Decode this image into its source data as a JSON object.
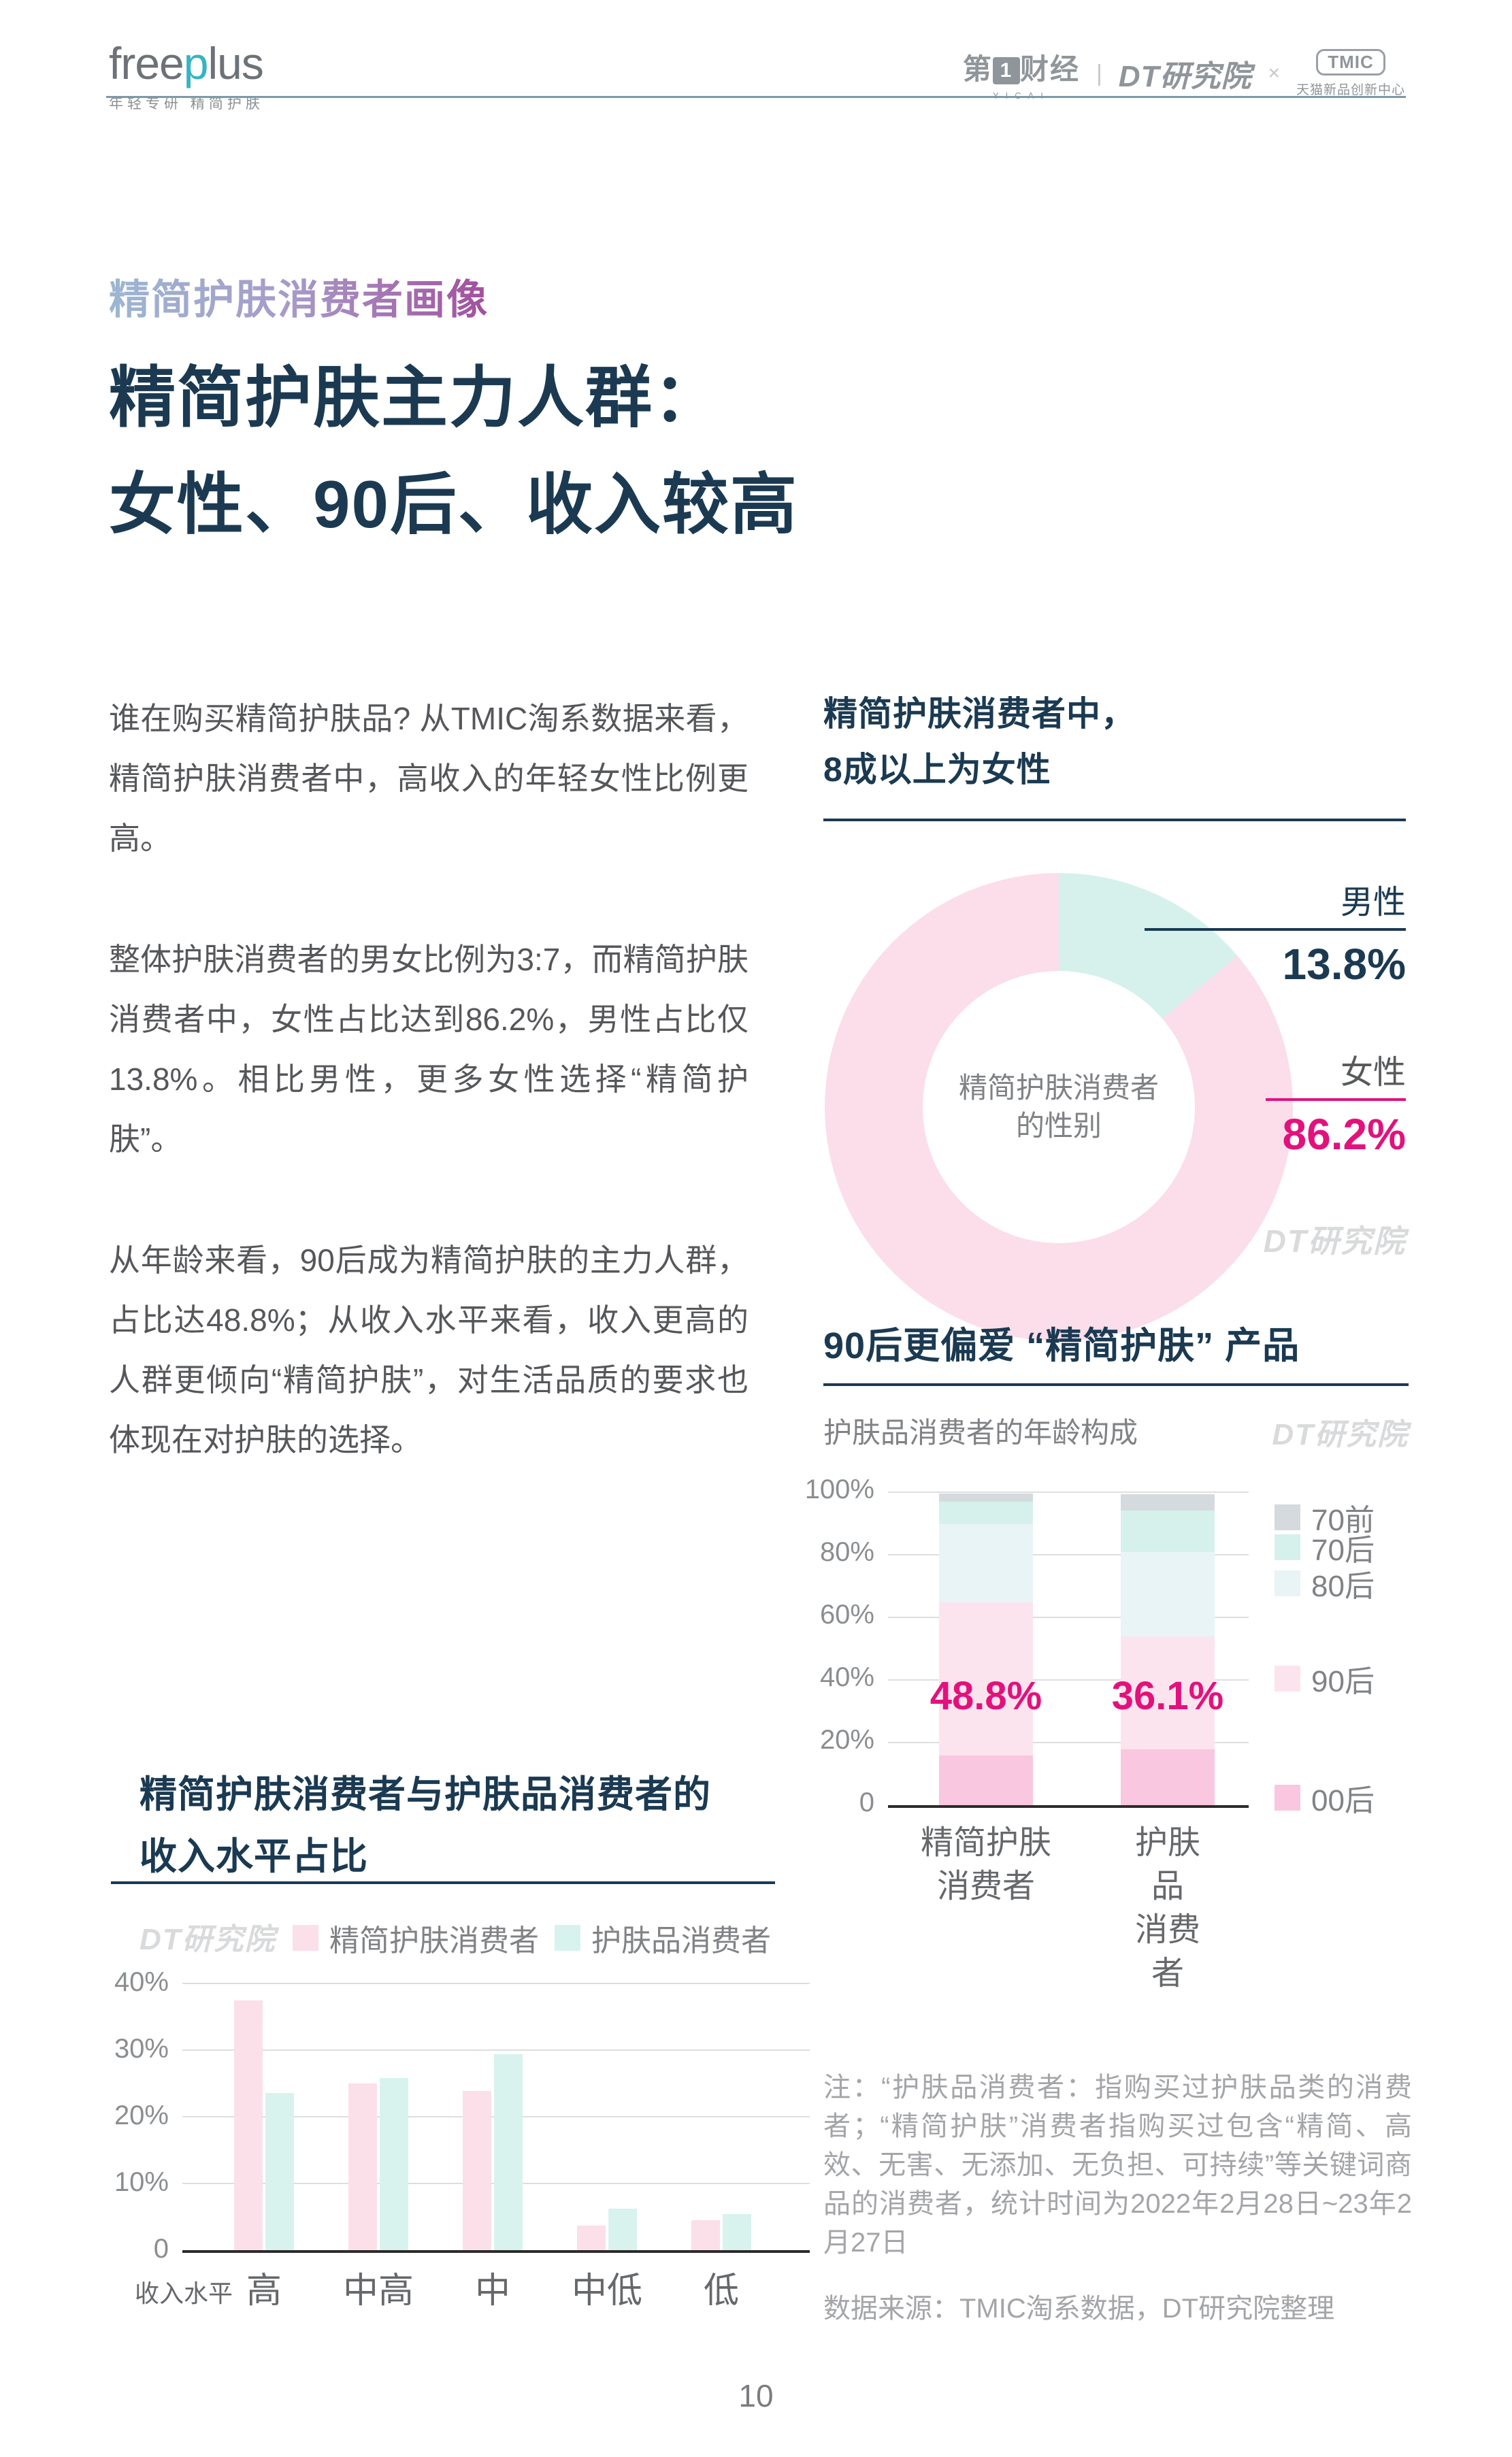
{
  "page": {
    "number": "10"
  },
  "header": {
    "brand": {
      "wordmark_a": "free",
      "wordmark_b": "p",
      "wordmark_c": "lus",
      "tagline": "年轻专研 精简护肤"
    },
    "partners": {
      "yicai_pre": "第",
      "yicai_one": "1",
      "yicai_post": "财经",
      "yicai_en": "YICAI",
      "separator": "|",
      "dt": "DT研究院",
      "times": "×",
      "tmic": "TMIC",
      "tmic_sub": "天猫新品创新中心"
    }
  },
  "title": {
    "eyebrow": "精简护肤消费者画像",
    "line1": "精简护肤主力人群：",
    "line2": "女性、90后、收入较高"
  },
  "paragraphs": [
    "谁在购买精简护肤品? 从TMIC淘系数据来看，精简护肤消费者中，高收入的年轻女性比例更高。",
    "整体护肤消费者的男女比例为3:7，而精简护肤消费者中，女性占比达到86.2%，男性占比仅13.8%。相比男性，更多女性选择“精简护肤”。",
    "从年龄来看，90后成为精简护肤的主力人群，占比达48.8%；从收入水平来看，收入更高的人群更倾向“精简护肤”，对生活品质的要求也体现在对护肤的选择。"
  ],
  "gender_section": {
    "heading_line1": "精简护肤消费者中，",
    "heading_line2": "8成以上为女性",
    "male_label": "男性",
    "male_value": "13.8%",
    "female_label": "女性",
    "female_value": "86.2%",
    "watermark": "DT研究院",
    "accent_navy": "#1b3a52",
    "accent_magenta": "#e3117c"
  },
  "age_section": {
    "heading": "90后更偏爱 “精简护肤” 产品",
    "subtitle": "护肤品消费者的年龄构成",
    "watermark": "DT研究院",
    "cat_labels": [
      "精简护肤\n消费者",
      "护肤品\n消费者"
    ]
  },
  "income_section": {
    "heading_line1": "精简护肤消费者与护肤品消费者的",
    "heading_line2": "收入水平占比",
    "watermark": "DT研究院",
    "axis_caption": "收入水平"
  },
  "notes": {
    "line1": "注：“护肤品消费者：指购买过护肤品类的消费者；“精简护肤”消费者指购买过包含“精简、高效、无害、无添加、无负担、可持续”等关键词商品的消费者，统计时间为2022年2月28日~23年2月27日",
    "line2": "数据来源：TMIC淘系数据，DT研究院整理"
  },
  "chart_data": [
    {
      "type": "pie",
      "donut": true,
      "title": "精简护肤消费者中，8成以上为女性",
      "labels": [
        "女性",
        "男性"
      ],
      "values": [
        86.2,
        13.8
      ],
      "colors": [
        "#fbdeea",
        "#d6f1ec"
      ],
      "center_label_line1": "精简护肤消费者",
      "center_label_line2": "的性别",
      "legend_position": "right"
    },
    {
      "type": "bar",
      "stacked": true,
      "title": "90后更偏爱 “精简护肤” 产品",
      "subtitle": "护肤品消费者的年龄构成",
      "categories": [
        "精简护肤消费者",
        "护肤品消费者"
      ],
      "series": [
        {
          "name": "00后",
          "values": [
            15.9,
            17.9
          ],
          "color": "#f9c7df"
        },
        {
          "name": "90后",
          "values": [
            48.8,
            36.1
          ],
          "color": "#fce4ee"
        },
        {
          "name": "80后",
          "values": [
            25.0,
            26.9
          ],
          "color": "#e9f4f7"
        },
        {
          "name": "70后",
          "values": [
            7.3,
            13.2
          ],
          "color": "#d6f1ec"
        },
        {
          "name": "70前",
          "values": [
            2.5,
            5.2
          ],
          "color": "#d4dadd"
        }
      ],
      "highlight_labels": [
        "48.8%",
        "36.1%"
      ],
      "ylim": [
        0,
        100
      ],
      "yticks": [
        "0",
        "20%",
        "40%",
        "60%",
        "80%",
        "100%"
      ],
      "grid": true,
      "legend_position": "right"
    },
    {
      "type": "bar",
      "stacked": false,
      "title": "精简护肤消费者与护肤品消费者的收入水平占比",
      "categories": [
        "高",
        "中高",
        "中",
        "中低",
        "低"
      ],
      "series": [
        {
          "name": "精简护肤消费者",
          "values": [
            37.4,
            25.0,
            23.9,
            3.7,
            4.5
          ],
          "color": "#fbdfe9"
        },
        {
          "name": "护肤品消费者",
          "values": [
            23.6,
            25.8,
            29.4,
            6.2,
            5.4
          ],
          "color": "#d8f3ee"
        }
      ],
      "xlabel": "收入水平",
      "ylim": [
        0,
        40
      ],
      "yticks": [
        "0",
        "10%",
        "20%",
        "30%",
        "40%"
      ],
      "grid": true,
      "legend_position": "top"
    }
  ]
}
